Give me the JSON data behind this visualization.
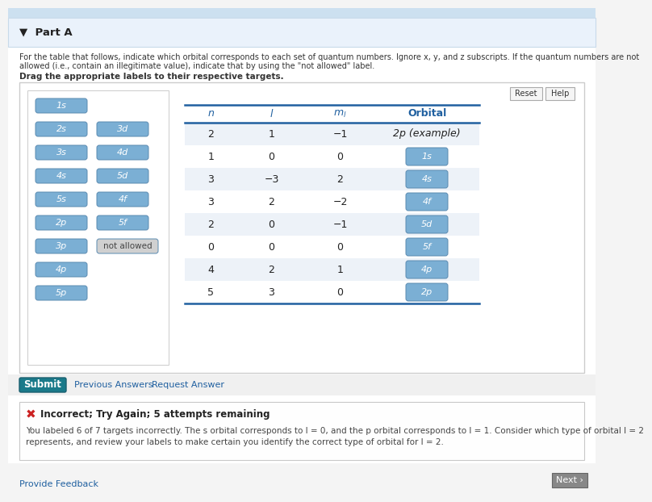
{
  "bg_color": "#f4f4f4",
  "page_bg": "#ffffff",
  "part_a_label": "▼  Part A",
  "instructions_line1": "For the table that follows, indicate which orbital corresponds to each set of quantum numbers. Ignore x, y, and z subscripts. If the quantum numbers are not",
  "instructions_line2": "allowed (i.e., contain an illegitimate value), indicate that by using the \"not allowed\" label.",
  "drag_label": "Drag the appropriate labels to their respective targets.",
  "table_rows": [
    [
      "2",
      "1",
      "−1",
      "2p (example)",
      false
    ],
    [
      "1",
      "0",
      "0",
      "1s",
      true
    ],
    [
      "3",
      "−3",
      "2",
      "4s",
      true
    ],
    [
      "3",
      "2",
      "−2",
      "4f",
      true
    ],
    [
      "2",
      "0",
      "−1",
      "5d",
      true
    ],
    [
      "0",
      "0",
      "0",
      "5f",
      true
    ],
    [
      "4",
      "2",
      "1",
      "4p",
      true
    ],
    [
      "5",
      "3",
      "0",
      "2p",
      true
    ]
  ],
  "left_buttons_col1": [
    "1s",
    "2s",
    "3s",
    "4s",
    "5s",
    "2p",
    "3p",
    "4p",
    "5p"
  ],
  "right_buttons_col2": [
    "3d",
    "4d",
    "5d",
    "4f",
    "5f",
    "not allowed"
  ],
  "button_color": "#7bafd4",
  "button_text_color": "#ffffff",
  "not_allowed_color": "#d0d0d0",
  "not_allowed_text": "#444444",
  "submit_text": "Submit",
  "submit_bg": "#1a7a8a",
  "error_bg": "#fafafa",
  "error_border": "#d9534f",
  "error_title": "Incorrect; Try Again; 5 attempts remaining",
  "error_line1": "You labeled 6 of 7 targets incorrectly. The s orbital corresponds to l = 0, and the p orbital corresponds to l = 1. Consider which type of orbital l = 2",
  "error_line2": "represents, and review your labels to make certain you identify the correct type of orbital for l = 2.",
  "reset_btn": "Reset",
  "help_btn": "Help",
  "prev_answers": "Previous Answers",
  "request_answer": "Request Answer",
  "provide_feedback": "Provide Feedback",
  "next_btn": "Next ›"
}
